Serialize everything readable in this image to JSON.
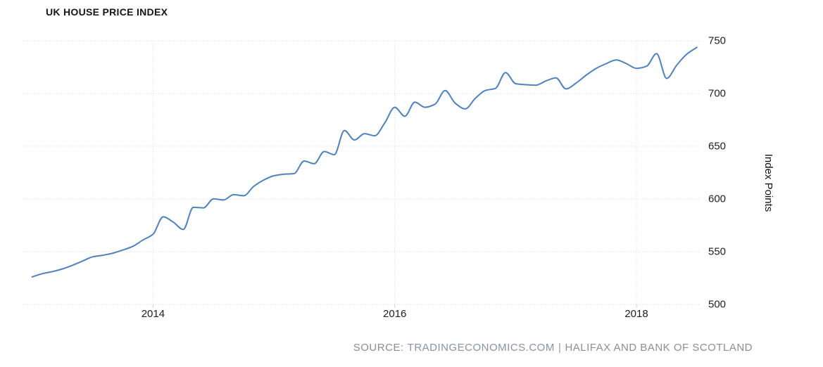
{
  "title": "UK HOUSE PRICE INDEX",
  "source": {
    "prefix": "SOURCE:",
    "link": "TRADINGECONOMICS.COM",
    "separator": "|",
    "attribution": "HALIFAX AND BANK OF SCOTLAND"
  },
  "colors": {
    "line": "#4f82bc",
    "grid": "#d8d8d8",
    "tick": "#cfcfcf",
    "axis_text": "#1f1f1f",
    "source_text": "#8e8e8e"
  },
  "chart_data": {
    "type": "line",
    "title": "UK HOUSE PRICE INDEX",
    "ylabel": "Index Points",
    "xlabel": "",
    "legend": "none",
    "grid": "dotted",
    "ylim": [
      500,
      750
    ],
    "xlim_years": [
      2012.92,
      2018.53
    ],
    "y_ticks_display": [
      750,
      700,
      650,
      600,
      550,
      500
    ],
    "x_ticks": [
      "2014",
      "2016",
      "2018"
    ],
    "series": [
      {
        "name": "UK House Price Index",
        "units": "Index Points",
        "x_start": "2013-01",
        "frequency": "monthly",
        "values": [
          526,
          529,
          531,
          533.5,
          537,
          541,
          545,
          546.5,
          548.5,
          551.5,
          555,
          561,
          566.5,
          583,
          578,
          571,
          592,
          591.5,
          600,
          599,
          604,
          603,
          612,
          618,
          622,
          623.5,
          624,
          636,
          633.5,
          645,
          642,
          665,
          656,
          662,
          660,
          672,
          687,
          678.5,
          692,
          687,
          690,
          703,
          691,
          685.5,
          695.5,
          703,
          705,
          720,
          709.5,
          708.5,
          708,
          712,
          715,
          704.5,
          710,
          717.5,
          724,
          728.5,
          732,
          728.5,
          724,
          726,
          738,
          714.5,
          727,
          737.5,
          744
        ]
      }
    ]
  }
}
